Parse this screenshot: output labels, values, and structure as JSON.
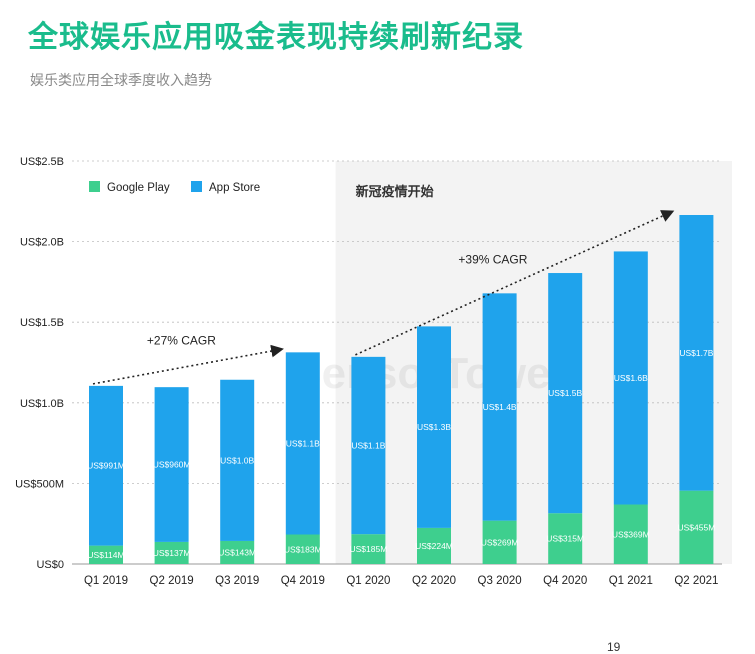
{
  "header": {
    "title": "全球娱乐应用吸金表现持续刷新纪录",
    "subtitle": "娱乐类应用全球季度收入趋势"
  },
  "page_number": "19",
  "colors": {
    "google_play": "#3ecf8e",
    "app_store": "#1fa3ec",
    "shaded_region": "#f3f3f3",
    "title": "#1abc8c"
  },
  "chart_data": {
    "type": "bar",
    "stacked": true,
    "categories": [
      "Q1 2019",
      "Q2 2019",
      "Q3 2019",
      "Q4 2019",
      "Q1 2020",
      "Q2 2020",
      "Q3 2020",
      "Q4 2020",
      "Q1 2021",
      "Q2 2021"
    ],
    "series": [
      {
        "name": "Google Play",
        "values": [
          114,
          137,
          143,
          183,
          185,
          224,
          269,
          315,
          369,
          455
        ],
        "labels": [
          "US$114M",
          "US$137M",
          "US$143M",
          "US$183M",
          "US$185M",
          "US$224M",
          "US$269M",
          "US$315M",
          "US$369M",
          "US$455M"
        ]
      },
      {
        "name": "App Store",
        "values": [
          991,
          960,
          1000,
          1130,
          1100,
          1250,
          1410,
          1490,
          1570,
          1710
        ],
        "labels": [
          "US$991M",
          "US$960M",
          "US$1.0B",
          "US$1.1B",
          "US$1.1B",
          "US$1.3B",
          "US$1.4B",
          "US$1.5B",
          "US$1.6B",
          "US$1.7B"
        ]
      }
    ],
    "yticks": [
      0,
      500,
      1000,
      1500,
      2000,
      2500
    ],
    "ytick_labels": [
      "US$0",
      "US$500M",
      "US$1.0B",
      "US$1.5B",
      "US$2.0B",
      "US$2.5B"
    ],
    "ylim": [
      0,
      2500
    ],
    "grid": true,
    "legend_position": "top-left",
    "shaded_region": {
      "from_category": "Q1 2020",
      "label": "新冠疫情开始"
    },
    "annotations": [
      {
        "text": "+27% CAGR",
        "from": "Q1 2019",
        "to": "Q4 2019"
      },
      {
        "text": "+39% CAGR",
        "from": "Q1 2020",
        "to": "Q2 2021"
      }
    ],
    "watermark": "SensorTower"
  }
}
